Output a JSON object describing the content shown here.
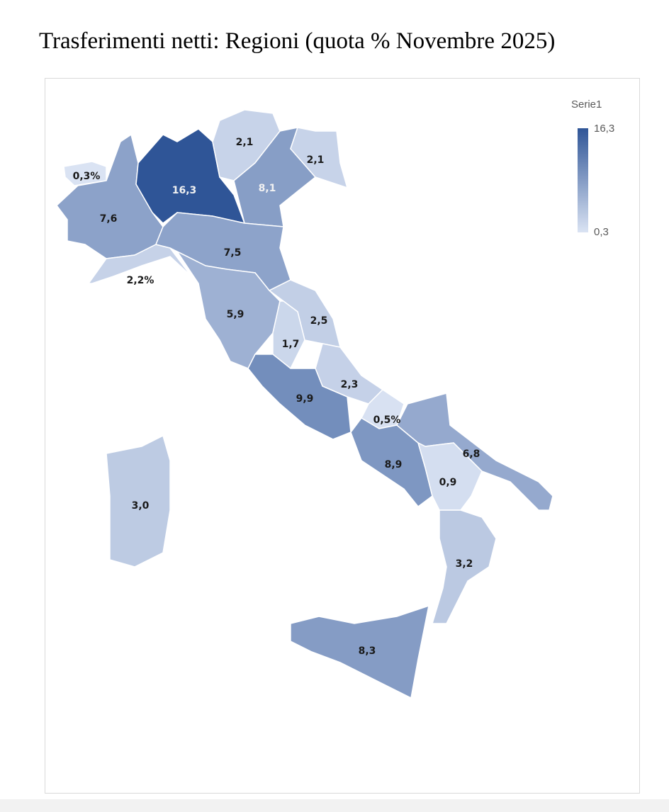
{
  "title": "Trasferimenti netti: Regioni (quota % Novembre 2025)",
  "legend": {
    "title": "Serie1",
    "max_label": "16,3",
    "min_label": "0,3",
    "max": 16.3,
    "min": 0.3,
    "color_high": "#2f5597",
    "color_low": "#dae3f3"
  },
  "chart_data": {
    "type": "choropleth",
    "title": "Trasferimenti netti: Regioni (quota % Novembre 2025)",
    "series_name": "Serie1",
    "regions": [
      {
        "name": "Valle d'Aosta",
        "value": 0.3,
        "label": "0,3%"
      },
      {
        "name": "Piemonte",
        "value": 7.6,
        "label": "7,6"
      },
      {
        "name": "Lombardia",
        "value": 16.3,
        "label": "16,3"
      },
      {
        "name": "Trentino-Alto Adige",
        "value": 2.1,
        "label": "2,1"
      },
      {
        "name": "Veneto",
        "value": 8.1,
        "label": "8,1"
      },
      {
        "name": "Friuli-Venezia Giulia",
        "value": 2.1,
        "label": "2,1"
      },
      {
        "name": "Liguria",
        "value": 2.2,
        "label": "2,2%"
      },
      {
        "name": "Emilia-Romagna",
        "value": 7.5,
        "label": "7,5"
      },
      {
        "name": "Toscana",
        "value": 5.9,
        "label": "5,9"
      },
      {
        "name": "Marche",
        "value": 2.5,
        "label": "2,5"
      },
      {
        "name": "Umbria",
        "value": 1.7,
        "label": "1,7"
      },
      {
        "name": "Abruzzo",
        "value": 2.3,
        "label": "2,3"
      },
      {
        "name": "Molise",
        "value": 0.5,
        "label": "0,5%"
      },
      {
        "name": "Lazio",
        "value": 9.9,
        "label": "9,9"
      },
      {
        "name": "Campania",
        "value": 8.9,
        "label": "8,9"
      },
      {
        "name": "Puglia",
        "value": 6.8,
        "label": "6,8"
      },
      {
        "name": "Basilicata",
        "value": 0.9,
        "label": "0,9"
      },
      {
        "name": "Calabria",
        "value": 3.2,
        "label": "3,2"
      },
      {
        "name": "Sicilia",
        "value": 8.3,
        "label": "8,3"
      },
      {
        "name": "Sardegna",
        "value": 3.0,
        "label": "3,0"
      }
    ]
  }
}
